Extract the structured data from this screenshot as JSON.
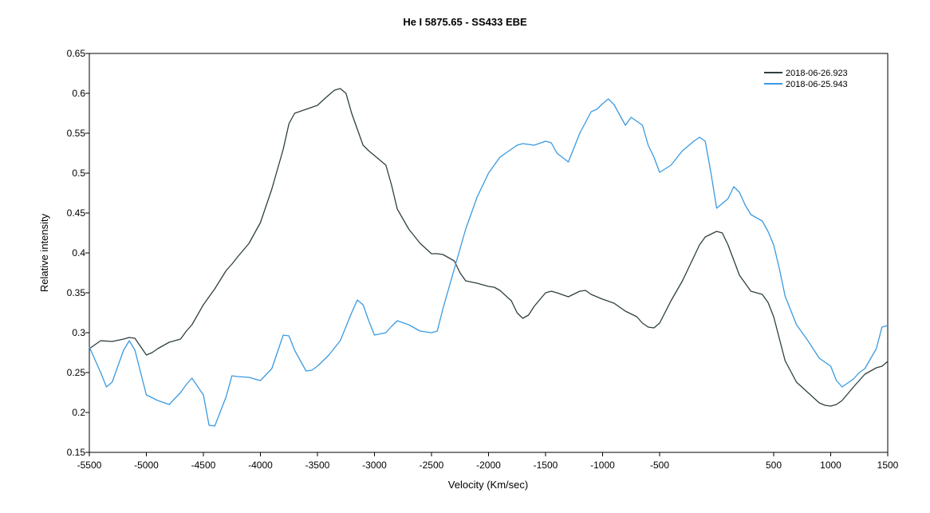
{
  "chart_data": {
    "type": "line",
    "title": "He I 5875.65 - SS433   EBE",
    "xlabel": "Velocity (Km/sec)",
    "ylabel": "Relative intensity",
    "xlim": [
      -5500,
      1500
    ],
    "ylim": [
      0.15,
      0.65
    ],
    "x_ticks": [
      -5500,
      -5000,
      -4500,
      -4000,
      -3500,
      -3000,
      -2500,
      -2000,
      -1500,
      -1000,
      -500,
      500,
      1000,
      1500
    ],
    "x_tick_labels": [
      "-5500",
      "-5000",
      "-4500",
      "-4000",
      "-3500",
      "-3000",
      "-2500",
      "-2000",
      "-1500",
      "-1000",
      "-500",
      "500",
      "1000",
      "1500"
    ],
    "y_ticks": [
      0.15,
      0.2,
      0.25,
      0.3,
      0.35,
      0.4,
      0.45,
      0.5,
      0.55,
      0.6,
      0.65
    ],
    "y_tick_labels": [
      "0.15",
      "0.2",
      "0.25",
      "0.3",
      "0.35",
      "0.4",
      "0.45",
      "0.5",
      "0.55",
      "0.6",
      "0.65"
    ],
    "grid": false,
    "legend_position": "top-right",
    "series": [
      {
        "name": "2018-06-26.923",
        "color": "#2f3f3f",
        "x": [
          -5500,
          -5400,
          -5300,
          -5200,
          -5150,
          -5100,
          -5000,
          -4950,
          -4900,
          -4800,
          -4700,
          -4650,
          -4600,
          -4500,
          -4450,
          -4400,
          -4300,
          -4250,
          -4200,
          -4100,
          -4000,
          -3900,
          -3800,
          -3750,
          -3700,
          -3600,
          -3500,
          -3400,
          -3350,
          -3300,
          -3250,
          -3200,
          -3100,
          -3050,
          -3000,
          -2900,
          -2850,
          -2800,
          -2700,
          -2600,
          -2500,
          -2450,
          -2400,
          -2300,
          -2250,
          -2200,
          -2100,
          -2000,
          -1950,
          -1900,
          -1800,
          -1750,
          -1700,
          -1650,
          -1600,
          -1500,
          -1450,
          -1400,
          -1300,
          -1200,
          -1150,
          -1100,
          -1000,
          -900,
          -800,
          -700,
          -650,
          -600,
          -550,
          -500,
          -400,
          -300,
          -200,
          -150,
          -100,
          0,
          50,
          100,
          200,
          300,
          400,
          450,
          500,
          600,
          700,
          800,
          900,
          950,
          1000,
          1050,
          1100,
          1200,
          1300,
          1400,
          1450,
          1500
        ],
        "y": [
          0.28,
          0.29,
          0.289,
          0.292,
          0.294,
          0.293,
          0.272,
          0.275,
          0.28,
          0.288,
          0.292,
          0.302,
          0.31,
          0.335,
          0.345,
          0.355,
          0.378,
          0.386,
          0.395,
          0.412,
          0.438,
          0.48,
          0.53,
          0.562,
          0.575,
          0.58,
          0.585,
          0.598,
          0.604,
          0.606,
          0.6,
          0.575,
          0.535,
          0.528,
          0.522,
          0.51,
          0.485,
          0.455,
          0.43,
          0.412,
          0.399,
          0.399,
          0.398,
          0.39,
          0.375,
          0.365,
          0.362,
          0.358,
          0.357,
          0.353,
          0.34,
          0.325,
          0.318,
          0.322,
          0.333,
          0.35,
          0.352,
          0.35,
          0.345,
          0.352,
          0.353,
          0.348,
          0.342,
          0.337,
          0.327,
          0.32,
          0.312,
          0.307,
          0.306,
          0.312,
          0.34,
          0.365,
          0.395,
          0.41,
          0.42,
          0.427,
          0.425,
          0.41,
          0.372,
          0.352,
          0.348,
          0.338,
          0.32,
          0.265,
          0.238,
          0.225,
          0.212,
          0.209,
          0.208,
          0.21,
          0.215,
          0.232,
          0.248,
          0.256,
          0.258,
          0.264
        ]
      },
      {
        "name": "2018-06-25.943",
        "color": "#3a9ae0",
        "x": [
          -5500,
          -5400,
          -5350,
          -5300,
          -5200,
          -5150,
          -5100,
          -5000,
          -4900,
          -4800,
          -4700,
          -4650,
          -4600,
          -4500,
          -4450,
          -4400,
          -4300,
          -4250,
          -4200,
          -4100,
          -4000,
          -3900,
          -3800,
          -3750,
          -3700,
          -3600,
          -3550,
          -3500,
          -3400,
          -3300,
          -3200,
          -3150,
          -3100,
          -3050,
          -3000,
          -2900,
          -2850,
          -2800,
          -2700,
          -2600,
          -2500,
          -2450,
          -2400,
          -2300,
          -2200,
          -2100,
          -2000,
          -1900,
          -1800,
          -1750,
          -1700,
          -1600,
          -1500,
          -1450,
          -1400,
          -1300,
          -1200,
          -1100,
          -1050,
          -1000,
          -950,
          -900,
          -800,
          -750,
          -700,
          -650,
          -600,
          -550,
          -500,
          -400,
          -300,
          -200,
          -150,
          -100,
          -50,
          0,
          100,
          150,
          200,
          250,
          300,
          400,
          450,
          500,
          550,
          600,
          700,
          800,
          900,
          1000,
          1050,
          1100,
          1200,
          1250,
          1300,
          1400,
          1450,
          1500
        ],
        "y": [
          0.282,
          0.25,
          0.232,
          0.238,
          0.278,
          0.29,
          0.278,
          0.222,
          0.215,
          0.21,
          0.225,
          0.235,
          0.243,
          0.222,
          0.184,
          0.183,
          0.22,
          0.246,
          0.245,
          0.244,
          0.24,
          0.255,
          0.297,
          0.296,
          0.278,
          0.252,
          0.253,
          0.258,
          0.272,
          0.29,
          0.325,
          0.341,
          0.335,
          0.315,
          0.297,
          0.3,
          0.308,
          0.315,
          0.31,
          0.302,
          0.3,
          0.302,
          0.33,
          0.38,
          0.43,
          0.47,
          0.5,
          0.52,
          0.53,
          0.535,
          0.537,
          0.535,
          0.54,
          0.538,
          0.525,
          0.514,
          0.55,
          0.577,
          0.58,
          0.587,
          0.593,
          0.586,
          0.56,
          0.57,
          0.565,
          0.56,
          0.535,
          0.52,
          0.501,
          0.51,
          0.528,
          0.54,
          0.545,
          0.54,
          0.5,
          0.456,
          0.468,
          0.483,
          0.476,
          0.46,
          0.448,
          0.44,
          0.427,
          0.41,
          0.38,
          0.346,
          0.31,
          0.29,
          0.268,
          0.258,
          0.24,
          0.232,
          0.242,
          0.25,
          0.255,
          0.28,
          0.307,
          0.309
        ]
      }
    ]
  }
}
